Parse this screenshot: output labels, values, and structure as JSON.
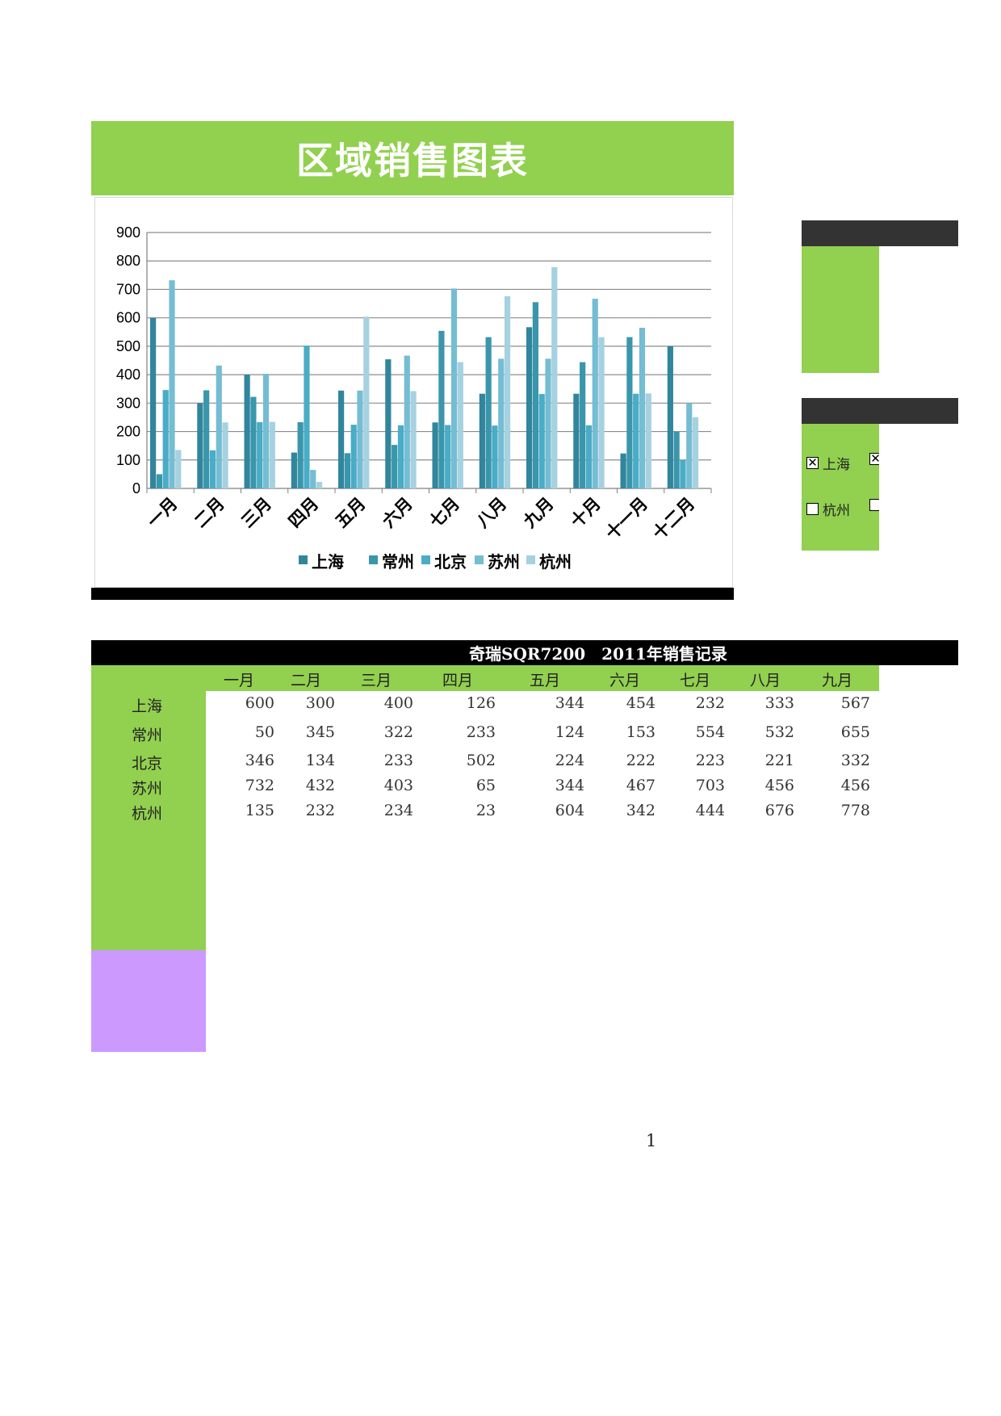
{
  "page_title": "区域销售图表",
  "chart_data": {
    "type": "bar",
    "title": "",
    "categories": [
      "一月",
      "二月",
      "三月",
      "四月",
      "五月",
      "六月",
      "七月",
      "八月",
      "九月",
      "十月",
      "十一月",
      "十二月"
    ],
    "series": [
      {
        "name": "上海",
        "color": "#31859c",
        "values": [
          600,
          300,
          400,
          126,
          344,
          454,
          232,
          333,
          567,
          333,
          123,
          500
        ]
      },
      {
        "name": "常州",
        "color": "#3a96ab",
        "values": [
          50,
          345,
          322,
          233,
          124,
          153,
          554,
          532,
          655,
          444,
          532,
          200
        ]
      },
      {
        "name": "北京",
        "color": "#4aacc6",
        "values": [
          346,
          134,
          233,
          502,
          224,
          222,
          223,
          221,
          332,
          222,
          333,
          100
        ]
      },
      {
        "name": "苏州",
        "color": "#75bdd3",
        "values": [
          732,
          432,
          403,
          65,
          344,
          467,
          703,
          456,
          456,
          667,
          565,
          300
        ]
      },
      {
        "name": "杭州",
        "color": "#a5d1e0",
        "values": [
          135,
          232,
          234,
          23,
          604,
          342,
          444,
          676,
          778,
          532,
          334,
          250
        ]
      }
    ],
    "ylim": [
      0,
      900
    ],
    "yticks": [
      0,
      100,
      200,
      300,
      400,
      500,
      600,
      700,
      800,
      900
    ],
    "xlabel": "",
    "ylabel": "",
    "grid": true,
    "legend": "bottom"
  },
  "checkboxes": [
    {
      "label": "上海",
      "checked": true
    },
    {
      "label": "",
      "checked": true
    },
    {
      "label": "杭州",
      "checked": false
    },
    {
      "label": "",
      "checked": false
    }
  ],
  "table": {
    "title": "奇瑞SQR7200　2011年销售记录",
    "months": [
      "一月",
      "二月",
      "三月",
      "四月",
      "五月",
      "六月",
      "七月",
      "八月",
      "九月"
    ],
    "rows": [
      {
        "city": "上海",
        "values": [
          600,
          300,
          400,
          126,
          344,
          454,
          232,
          333,
          567
        ]
      },
      {
        "city": "常州",
        "values": [
          50,
          345,
          322,
          233,
          124,
          153,
          554,
          532,
          655
        ]
      },
      {
        "city": "北京",
        "values": [
          346,
          134,
          233,
          502,
          224,
          222,
          223,
          221,
          332
        ]
      },
      {
        "city": "苏州",
        "values": [
          732,
          432,
          403,
          65,
          344,
          467,
          703,
          456,
          456
        ]
      },
      {
        "city": "杭州",
        "values": [
          135,
          232,
          234,
          23,
          604,
          342,
          444,
          676,
          778
        ]
      }
    ]
  },
  "page_number": "1"
}
